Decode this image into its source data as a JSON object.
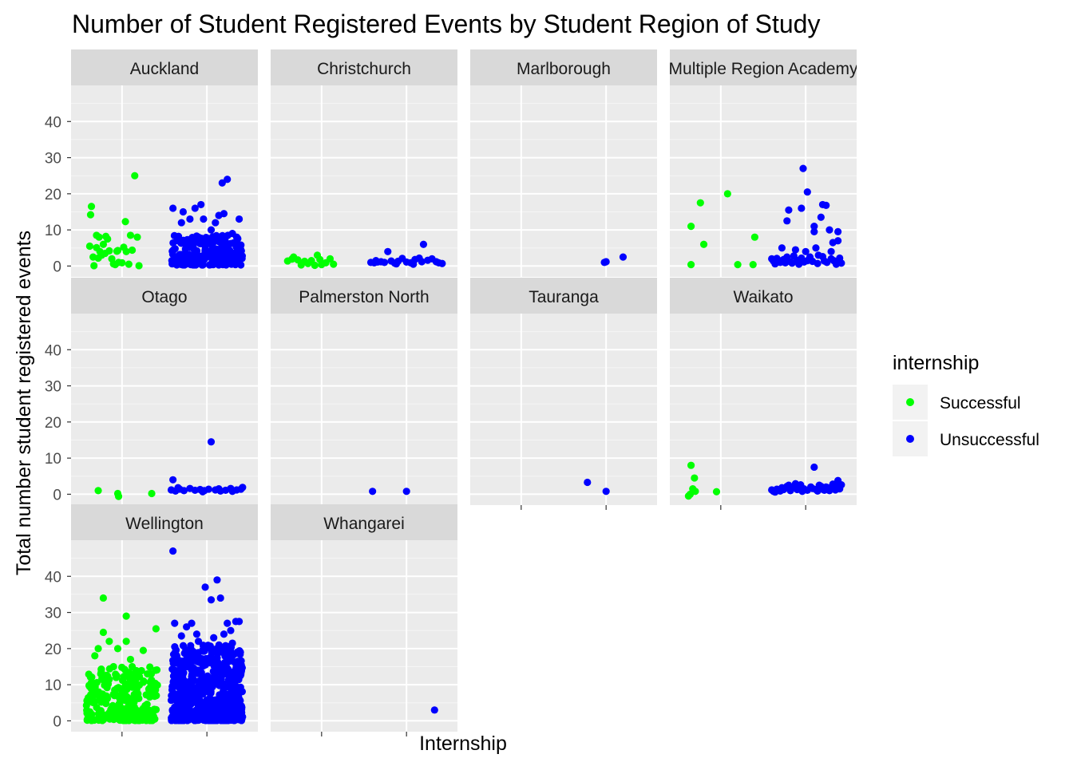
{
  "chart_data": {
    "type": "scatter",
    "title": "Number of Student Registered Events by Student Region of Study",
    "xlabel": "Internship",
    "ylabel": "Total number student registered events",
    "x_categories": [
      "Successful",
      "Unsuccessful"
    ],
    "x_tick_labels": [
      "",
      ""
    ],
    "ylim": [
      -3,
      50
    ],
    "y_ticks": [
      0,
      10,
      20,
      30,
      40
    ],
    "grid": true,
    "facet_wrap": {
      "ncol": 4,
      "shared_y": true
    },
    "legend": {
      "title": "internship",
      "position": "right",
      "entries": [
        {
          "label": "Successful",
          "color": "#00FF00"
        },
        {
          "label": "Unsuccessful",
          "color": "#0000FF"
        }
      ]
    },
    "colors": {
      "Successful": "#00FF00",
      "Unsuccessful": "#0000FF"
    },
    "panel_background": "#EBEBEB",
    "strip_background": "#D9D9D9",
    "facets": [
      {
        "name": "Auckland",
        "successful": [
          [
            -0.36,
            16.5
          ],
          [
            -0.37,
            14.2
          ],
          [
            -0.38,
            5.5
          ],
          [
            -0.3,
            5.1
          ],
          [
            -0.34,
            2.5
          ],
          [
            -0.33,
            0.1
          ],
          [
            -0.3,
            8.5
          ],
          [
            -0.27,
            8
          ],
          [
            -0.26,
            4
          ],
          [
            -0.24,
            3
          ],
          [
            -0.22,
            6
          ],
          [
            -0.2,
            3.5
          ],
          [
            -0.19,
            8.2
          ],
          [
            -0.17,
            7.5
          ],
          [
            -0.15,
            4.2
          ],
          [
            -0.12,
            2
          ],
          [
            -0.1,
            0.6
          ],
          [
            -0.08,
            0.4
          ],
          [
            -0.06,
            4.1
          ],
          [
            -0.04,
            1
          ],
          [
            0.02,
            5.2
          ],
          [
            0.04,
            12.3
          ],
          [
            0.05,
            4
          ],
          [
            0.08,
            0.5
          ],
          [
            0.1,
            8.5
          ],
          [
            0.12,
            4.4
          ],
          [
            0.15,
            25
          ],
          [
            0.18,
            8
          ],
          [
            0.2,
            0.1
          ],
          [
            -0.05,
            4.3
          ],
          [
            -0.28,
            2.2
          ],
          [
            0.0,
            0.9
          ]
        ],
        "unsuccessful": {
          "explicit": [
            [
              0.6,
              16
            ],
            [
              0.72,
              15
            ],
            [
              0.86,
              16
            ],
            [
              0.93,
              17
            ],
            [
              1.18,
              23
            ],
            [
              1.24,
              24
            ],
            [
              1.2,
              14.5
            ],
            [
              1.14,
              14
            ],
            [
              1.38,
              13
            ],
            [
              1.3,
              9
            ],
            [
              0.96,
              13
            ],
            [
              1.1,
              12
            ],
            [
              0.7,
              12
            ],
            [
              0.8,
              13
            ],
            [
              1.22,
              8
            ],
            [
              1.05,
              10
            ],
            [
              0.9,
              8
            ]
          ],
          "clusters": [
            {
              "n": 240,
              "xmin": 0.58,
              "xmax": 1.42,
              "ymin": 0.3,
              "ymax": 8.5
            }
          ]
        }
      },
      {
        "name": "Christchurch",
        "successful": [
          [
            -0.4,
            1.4
          ],
          [
            -0.33,
            2.5
          ],
          [
            -0.28,
            1.7
          ],
          [
            -0.24,
            0.3
          ],
          [
            -0.2,
            1.3
          ],
          [
            -0.16,
            0.7
          ],
          [
            -0.12,
            1.5
          ],
          [
            -0.05,
            3
          ],
          [
            -0.02,
            1.8
          ],
          [
            0.05,
            0.9
          ],
          [
            0.1,
            2
          ],
          [
            0.14,
            0.5
          ],
          [
            -0.35,
            1.9
          ],
          [
            0.0,
            0.4
          ],
          [
            -0.08,
            0.2
          ]
        ],
        "unsuccessful": [
          [
            0.58,
            1
          ],
          [
            0.62,
            0.9
          ],
          [
            0.66,
            1.1
          ],
          [
            0.7,
            1.2
          ],
          [
            0.74,
            1
          ],
          [
            0.78,
            4
          ],
          [
            0.82,
            1.4
          ],
          [
            0.86,
            0.8
          ],
          [
            0.9,
            1.3
          ],
          [
            0.95,
            2.1
          ],
          [
            1.0,
            1.1
          ],
          [
            1.05,
            0.9
          ],
          [
            1.1,
            1.8
          ],
          [
            1.15,
            2.2
          ],
          [
            1.18,
            1.2
          ],
          [
            1.2,
            6
          ],
          [
            1.25,
            1.6
          ],
          [
            1.3,
            2
          ],
          [
            1.35,
            1.2
          ],
          [
            1.38,
            0.9
          ],
          [
            1.42,
            0.7
          ],
          [
            0.64,
            1.5
          ],
          [
            0.88,
            0.6
          ],
          [
            1.08,
            0.5
          ]
        ]
      },
      {
        "name": "Marlborough",
        "successful": [],
        "unsuccessful": [
          [
            0.98,
            1
          ],
          [
            1.0,
            1.2
          ],
          [
            1.2,
            2.5
          ]
        ]
      },
      {
        "name": "Multiple Region Academy",
        "successful": [
          [
            -0.35,
            11
          ],
          [
            -0.24,
            17.5
          ],
          [
            -0.2,
            6
          ],
          [
            -0.35,
            0.4
          ],
          [
            0.08,
            20
          ],
          [
            0.2,
            0.4
          ],
          [
            0.38,
            0.4
          ],
          [
            0.4,
            8
          ]
        ],
        "unsuccessful": {
          "explicit": [
            [
              0.97,
              27
            ],
            [
              1.02,
              20.5
            ],
            [
              0.95,
              16
            ],
            [
              0.8,
              15.5
            ],
            [
              1.2,
              17
            ],
            [
              1.24,
              16.8
            ],
            [
              0.78,
              12.5
            ],
            [
              1.18,
              13.5
            ],
            [
              1.28,
              10
            ],
            [
              1.1,
              9.5
            ],
            [
              1.38,
              9.5
            ],
            [
              1.1,
              11
            ],
            [
              1.38,
              7
            ],
            [
              1.32,
              6.5
            ],
            [
              1.3,
              4
            ],
            [
              1.12,
              5
            ],
            [
              0.72,
              5
            ],
            [
              0.88,
              4.5
            ],
            [
              1.0,
              4
            ],
            [
              1.15,
              3
            ],
            [
              0.6,
              2
            ],
            [
              0.62,
              1.4
            ],
            [
              0.66,
              2.1
            ],
            [
              0.7,
              1
            ],
            [
              0.74,
              1.8
            ],
            [
              0.78,
              2.5
            ],
            [
              0.82,
              1.2
            ],
            [
              0.86,
              2.8
            ],
            [
              0.9,
              1.6
            ],
            [
              0.95,
              2.2
            ],
            [
              1.05,
              2.5
            ],
            [
              1.08,
              1.3
            ],
            [
              1.2,
              2.6
            ],
            [
              1.25,
              1
            ],
            [
              1.33,
              1.5
            ],
            [
              1.36,
              0.5
            ],
            [
              1.4,
              2.2
            ],
            [
              1.42,
              0.8
            ],
            [
              0.64,
              0.6
            ],
            [
              0.68,
              1.6
            ],
            [
              0.76,
              0.9
            ],
            [
              0.84,
              0.8
            ],
            [
              0.92,
              0.5
            ],
            [
              0.98,
              1.1
            ],
            [
              1.02,
              1.5
            ],
            [
              1.14,
              0.7
            ],
            [
              1.22,
              1.4
            ],
            [
              1.3,
              2
            ]
          ],
          "clusters": []
        }
      },
      {
        "name": "Otago",
        "successful": [
          [
            -0.28,
            1
          ],
          [
            -0.05,
            0.2
          ],
          [
            -0.04,
            -0.6
          ],
          [
            0.35,
            0.2
          ]
        ],
        "unsuccessful": [
          [
            1.05,
            14.5
          ],
          [
            0.6,
            4
          ],
          [
            0.58,
            1.2
          ],
          [
            0.63,
            0.9
          ],
          [
            0.68,
            1.4
          ],
          [
            0.73,
            1
          ],
          [
            0.8,
            1.6
          ],
          [
            0.86,
            1.1
          ],
          [
            0.92,
            1.3
          ],
          [
            0.97,
            1
          ],
          [
            1.02,
            1.4
          ],
          [
            1.1,
            1.2
          ],
          [
            1.16,
            0.9
          ],
          [
            1.22,
            1.1
          ],
          [
            1.28,
            1.6
          ],
          [
            1.35,
            1.2
          ],
          [
            1.4,
            1.4
          ],
          [
            1.42,
            1.9
          ],
          [
            1.3,
            0.8
          ],
          [
            1.14,
            1.5
          ],
          [
            0.95,
            0.7
          ],
          [
            0.66,
            1.8
          ]
        ]
      },
      {
        "name": "Palmerston North",
        "successful": [],
        "unsuccessful": [
          [
            0.6,
            0.8
          ],
          [
            1.0,
            0.8
          ]
        ]
      },
      {
        "name": "Tauranga",
        "successful": [],
        "unsuccessful": [
          [
            0.78,
            3.3
          ],
          [
            1.0,
            0.8
          ]
        ]
      },
      {
        "name": "Waikato",
        "successful": [
          [
            -0.35,
            8
          ],
          [
            -0.31,
            4.5
          ],
          [
            -0.33,
            1.5
          ],
          [
            -0.36,
            0
          ],
          [
            -0.38,
            -0.5
          ],
          [
            -0.3,
            0.8
          ],
          [
            -0.05,
            0.7
          ]
        ],
        "unsuccessful": [
          [
            1.1,
            7.5
          ],
          [
            0.6,
            1.2
          ],
          [
            0.62,
            0.8
          ],
          [
            0.66,
            1.4
          ],
          [
            0.7,
            0.9
          ],
          [
            0.74,
            1.3
          ],
          [
            0.78,
            2.2
          ],
          [
            0.82,
            1
          ],
          [
            0.86,
            1.8
          ],
          [
            0.9,
            1.3
          ],
          [
            0.94,
            2.6
          ],
          [
            0.98,
            1.5
          ],
          [
            1.02,
            1.1
          ],
          [
            1.06,
            2
          ],
          [
            1.12,
            1.3
          ],
          [
            1.16,
            2.5
          ],
          [
            1.2,
            1.4
          ],
          [
            1.24,
            2
          ],
          [
            1.28,
            1
          ],
          [
            1.32,
            2.8
          ],
          [
            1.35,
            1.2
          ],
          [
            1.38,
            3.8
          ],
          [
            1.4,
            1.5
          ],
          [
            1.42,
            2.6
          ],
          [
            1.36,
            2
          ],
          [
            1.3,
            1.6
          ],
          [
            1.22,
            1.1
          ],
          [
            1.14,
            0.9
          ],
          [
            1.08,
            1.6
          ],
          [
            0.96,
            0.8
          ],
          [
            0.88,
            2.9
          ],
          [
            0.8,
            2.5
          ],
          [
            0.72,
            1.8
          ],
          [
            0.64,
            0.6
          ],
          [
            1.26,
            1.8
          ],
          [
            1.18,
            2.2
          ]
        ]
      },
      {
        "name": "Wellington",
        "successful": {
          "explicit": [
            [
              -0.22,
              34
            ],
            [
              -0.22,
              24.5
            ],
            [
              0.05,
              29
            ],
            [
              0.4,
              25.5
            ],
            [
              -0.32,
              18
            ],
            [
              -0.28,
              20
            ],
            [
              0.05,
              22
            ],
            [
              0.25,
              19.5
            ],
            [
              -0.15,
              22
            ],
            [
              0.3,
              13
            ],
            [
              -0.05,
              20
            ],
            [
              0.1,
              17
            ],
            [
              -0.25,
              13
            ],
            [
              0.12,
              15
            ],
            [
              -0.1,
              15
            ]
          ],
          "clusters": [
            {
              "n": 260,
              "xmin": -0.42,
              "xmax": 0.42,
              "ymin": 0.1,
              "ymax": 15
            }
          ]
        },
        "unsuccessful": {
          "explicit": [
            [
              0.6,
              47
            ],
            [
              0.98,
              37
            ],
            [
              1.05,
              33.5
            ],
            [
              1.12,
              39
            ],
            [
              1.16,
              34
            ],
            [
              1.34,
              27.5
            ],
            [
              1.38,
              27.5
            ],
            [
              0.62,
              27
            ],
            [
              0.7,
              23.5
            ],
            [
              0.82,
              27
            ],
            [
              0.88,
              24
            ],
            [
              1.2,
              24
            ],
            [
              1.3,
              21.5
            ],
            [
              1.28,
              25
            ],
            [
              0.9,
              22
            ],
            [
              1.08,
              23
            ],
            [
              0.76,
              26
            ],
            [
              1.24,
              27
            ]
          ],
          "clusters": [
            {
              "n": 640,
              "xmin": 0.58,
              "xmax": 1.42,
              "ymin": 0.1,
              "ymax": 21
            }
          ]
        }
      },
      {
        "name": "Whangarei",
        "successful": [],
        "unsuccessful": [
          [
            1.33,
            3
          ]
        ]
      }
    ]
  }
}
